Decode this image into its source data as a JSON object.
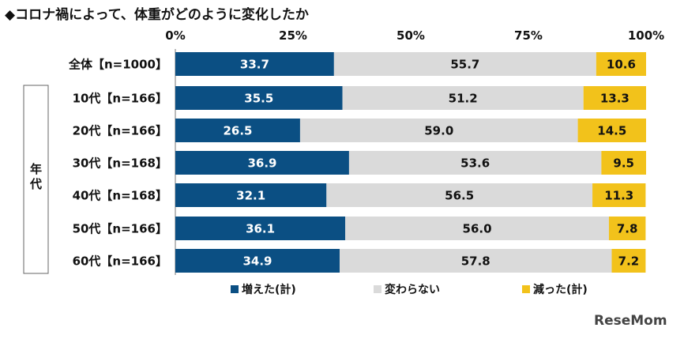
{
  "chart_data": {
    "type": "bar",
    "orientation": "horizontal",
    "stacked": true,
    "percent_stacked": true,
    "title": "◆コロナ禍によって、体重がどのように変化したか",
    "xlim": [
      0,
      100
    ],
    "x_ticks": [
      "0%",
      "25%",
      "50%",
      "75%",
      "100%"
    ],
    "categories": [
      "全体【n=1000】",
      "10代【n=166】",
      "20代【n=166】",
      "30代【n=168】",
      "40代【n=168】",
      "50代【n=166】",
      "60代【n=166】"
    ],
    "group_label": "年代",
    "series": [
      {
        "name": "増えた(計)",
        "color": "#0b4f83",
        "label_color": "#ffffff",
        "values": [
          33.7,
          35.5,
          26.5,
          36.9,
          32.1,
          36.1,
          34.9
        ]
      },
      {
        "name": "変わらない",
        "color": "#dadada",
        "label_color": "#111111",
        "values": [
          55.7,
          51.2,
          59.0,
          53.6,
          56.5,
          56.0,
          57.8
        ]
      },
      {
        "name": "減った(計)",
        "color": "#f2c21b",
        "label_color": "#111111",
        "values": [
          10.6,
          13.3,
          14.5,
          9.5,
          11.3,
          7.8,
          7.2
        ]
      }
    ],
    "legend_position": "bottom"
  },
  "watermark": "ReseMom"
}
